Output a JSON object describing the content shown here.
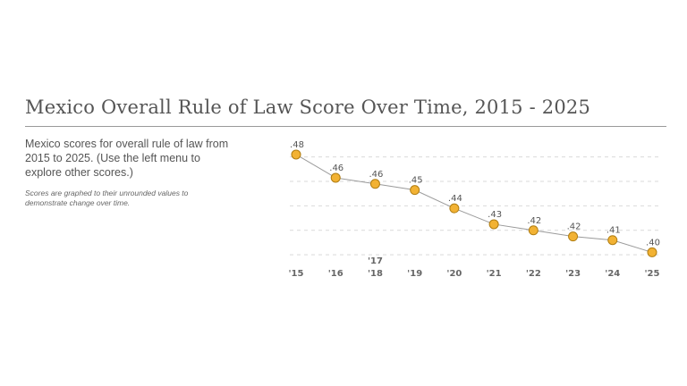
{
  "header": {
    "title": "Mexico Overall Rule of Law Score Over Time, 2015 - 2025"
  },
  "description": {
    "text": "Mexico scores for overall rule of law from 2015 to 2025. (Use the left menu to explore other scores.)",
    "note": "Scores are graphed to their unrounded values to demonstrate change over time."
  },
  "colors": {
    "point": "#f2b233",
    "line": "#9a9a9a"
  },
  "chart_data": {
    "type": "line",
    "title": "Mexico Overall Rule of Law Score Over Time, 2015 - 2025",
    "xlabel": "",
    "ylabel": "",
    "x": [
      "'15",
      "'16",
      "'17 '18",
      "'19",
      "'20",
      "'21",
      "'22",
      "'23",
      "'24",
      "'25"
    ],
    "x_lines": [
      [
        "'15"
      ],
      [
        "'16"
      ],
      [
        "'17",
        "'18"
      ],
      [
        "'19"
      ],
      [
        "'20"
      ],
      [
        "'21"
      ],
      [
        "'22"
      ],
      [
        "'23"
      ],
      [
        "'24"
      ],
      [
        "'25"
      ]
    ],
    "values": [
      0.482,
      0.463,
      0.458,
      0.453,
      0.438,
      0.425,
      0.42,
      0.415,
      0.412,
      0.402
    ],
    "labels": [
      ".48",
      ".46",
      ".46",
      ".45",
      ".44",
      ".43",
      ".42",
      ".42",
      ".41",
      ".40"
    ],
    "ylim": [
      0.395,
      0.49
    ],
    "gridlines": [
      0.48,
      0.46,
      0.44,
      0.42,
      0.4
    ],
    "grid": true
  }
}
